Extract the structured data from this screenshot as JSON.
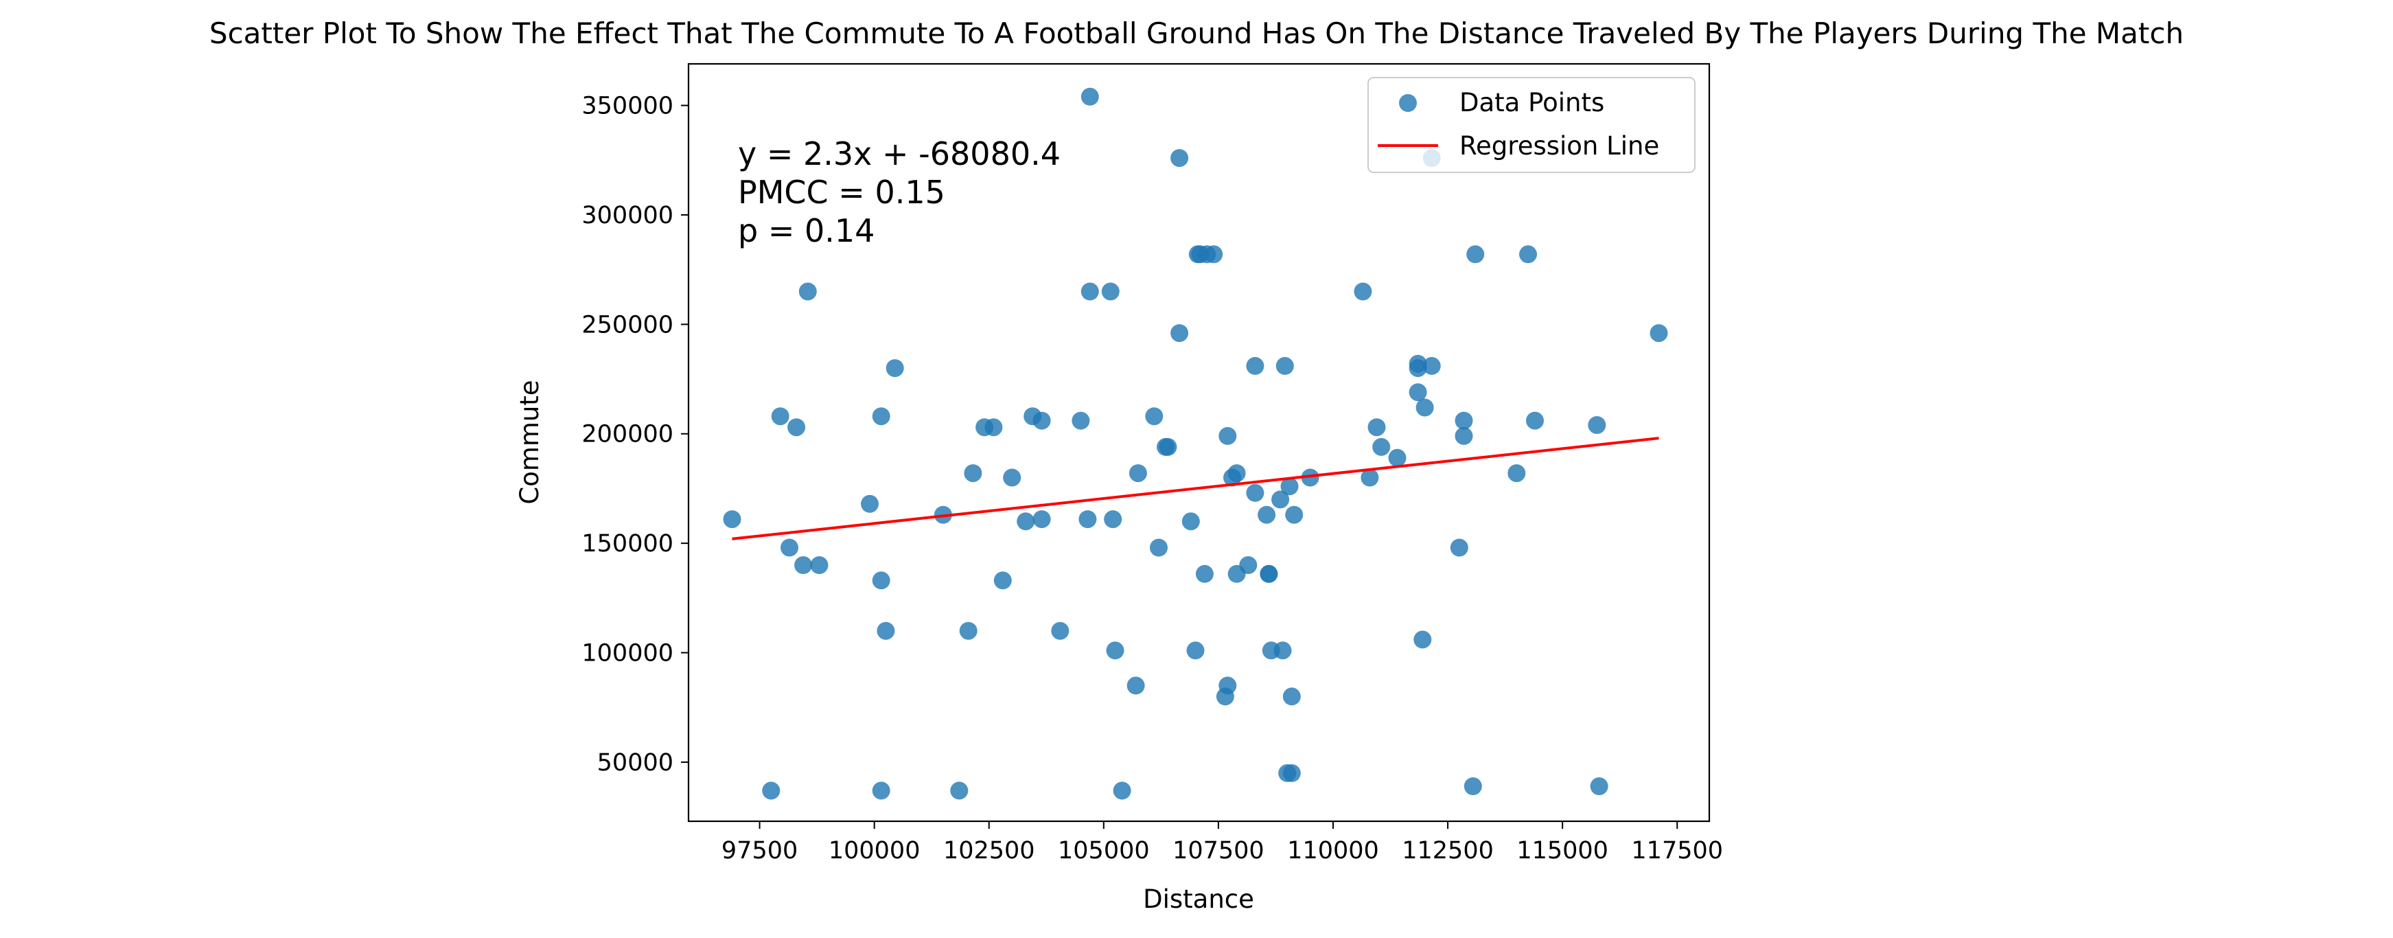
{
  "chart_data": {
    "type": "scatter",
    "title": "Scatter Plot To Show The Effect That The Commute To A Football Ground Has On The Distance Traveled By The Players During The Match",
    "xlabel": "Distance",
    "ylabel": "Commute",
    "xlim": [
      95950,
      118200
    ],
    "ylim": [
      23000,
      369000
    ],
    "x_ticks": [
      97500,
      100000,
      102500,
      105000,
      107500,
      110000,
      112500,
      115000,
      117500
    ],
    "x_tick_labels": [
      "97500",
      "100000",
      "102500",
      "105000",
      "107500",
      "110000",
      "112500",
      "115000",
      "117500"
    ],
    "y_ticks": [
      50000,
      100000,
      150000,
      200000,
      250000,
      300000,
      350000
    ],
    "y_tick_labels": [
      "50000",
      "100000",
      "150000",
      "200000",
      "250000",
      "300000",
      "350000"
    ],
    "grid": false,
    "legend_position": "top-right",
    "series": [
      {
        "name": "Data Points",
        "kind": "scatter",
        "color": "#1f77b4",
        "x": [
          96900,
          97750,
          97950,
          98150,
          98300,
          98450,
          98550,
          98800,
          99900,
          100150,
          100150,
          100150,
          100250,
          100450,
          101500,
          101850,
          102050,
          102150,
          102400,
          102600,
          102800,
          103000,
          103300,
          103450,
          103650,
          103650,
          104050,
          104500,
          104650,
          104700,
          104700,
          105150,
          105200,
          105250,
          105400,
          105700,
          105750,
          106100,
          106200,
          106350,
          106400,
          106650,
          106650,
          106900,
          107000,
          107050,
          107100,
          107200,
          107250,
          107400,
          107650,
          107700,
          107700,
          107800,
          107900,
          107900,
          108150,
          108300,
          108300,
          108550,
          108600,
          108600,
          108650,
          108850,
          108900,
          108950,
          109000,
          109050,
          109100,
          109100,
          109150,
          109500,
          110650,
          110800,
          110950,
          111050,
          111400,
          111850,
          111850,
          111850,
          111950,
          112000,
          112150,
          112150,
          112750,
          112850,
          112850,
          113050,
          113100,
          114000,
          114250,
          114400,
          115750,
          115800,
          117100
        ],
        "y": [
          161000,
          37000,
          208000,
          148000,
          203000,
          140000,
          265000,
          140000,
          168000,
          133000,
          37000,
          208000,
          110000,
          230000,
          163000,
          37000,
          110000,
          182000,
          203000,
          203000,
          133000,
          180000,
          160000,
          208000,
          206000,
          161000,
          110000,
          206000,
          161000,
          354000,
          265000,
          265000,
          161000,
          101000,
          37000,
          85000,
          182000,
          208000,
          148000,
          194000,
          194000,
          326000,
          246000,
          160000,
          101000,
          282000,
          282000,
          136000,
          282000,
          282000,
          80000,
          199000,
          85000,
          180000,
          182000,
          136000,
          140000,
          231000,
          173000,
          163000,
          136000,
          136000,
          101000,
          170000,
          101000,
          231000,
          45000,
          176000,
          80000,
          45000,
          163000,
          180000,
          265000,
          180000,
          203000,
          194000,
          189000,
          219000,
          232000,
          230000,
          106000,
          212000,
          326000,
          231000,
          148000,
          199000,
          206000,
          39000,
          282000,
          182000,
          282000,
          206000,
          204000,
          39000,
          246000
        ]
      },
      {
        "name": "Regression Line",
        "kind": "line",
        "color": "#ff0000",
        "x": [
          96900,
          117100
        ],
        "y": [
          152000,
          198000
        ]
      }
    ],
    "annotation": {
      "line1": "y =  2.3x + -68080.4",
      "line2": "PMCC =  0.15",
      "line3": "p =  0.14"
    }
  }
}
